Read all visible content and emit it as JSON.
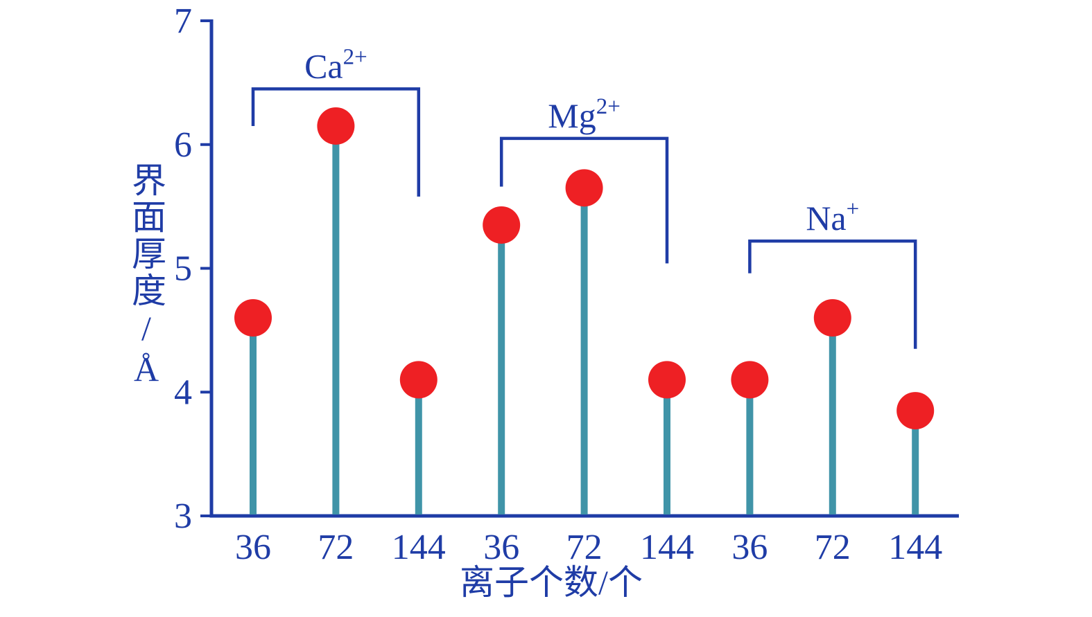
{
  "chart_data": {
    "type": "lollipop",
    "title": "",
    "xlabel": "离子个数/个",
    "ylabel": "界面厚度/Å",
    "ylim": [
      3,
      7
    ],
    "yticks": [
      3,
      4,
      5,
      6,
      7
    ],
    "grid": false,
    "legend": "none",
    "categories": [
      "36",
      "72",
      "144",
      "36",
      "72",
      "144",
      "36",
      "72",
      "144"
    ],
    "values": [
      4.6,
      6.15,
      4.1,
      5.35,
      5.65,
      4.1,
      4.1,
      4.6,
      3.85
    ],
    "groups": [
      {
        "base": "Ca",
        "sup": "2+",
        "label": "Ca²⁺",
        "indices": [
          0,
          1,
          2
        ],
        "bracket": {
          "y_top": 6.45,
          "y_left_end": 6.15,
          "y_right_end": 5.58
        }
      },
      {
        "base": "Mg",
        "sup": "2+",
        "label": "Mg²⁺",
        "indices": [
          3,
          4,
          5
        ],
        "bracket": {
          "y_top": 6.05,
          "y_left_end": 5.66,
          "y_right_end": 5.04
        }
      },
      {
        "base": "Na",
        "sup": "+",
        "label": "Na⁺",
        "indices": [
          6,
          7,
          8
        ],
        "bracket": {
          "y_top": 5.22,
          "y_left_end": 4.96,
          "y_right_end": 4.35
        }
      }
    ],
    "colors": {
      "axis": "#1f3ca6",
      "text": "#1f3ca6",
      "stem": "#4094a8",
      "marker": "#ee2024"
    }
  }
}
